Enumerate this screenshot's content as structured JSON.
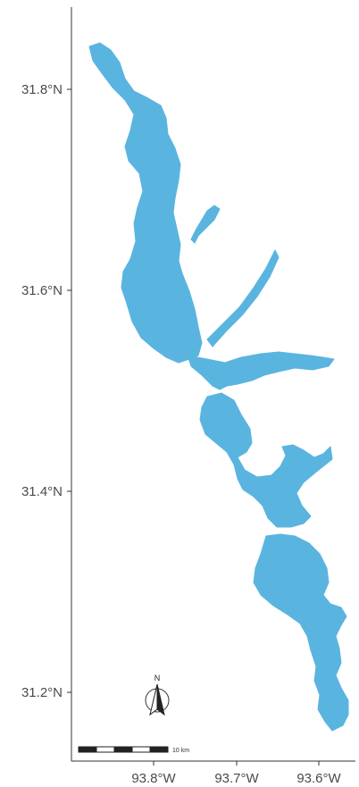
{
  "map": {
    "y_ticks": [
      "31.8°N",
      "31.6°N",
      "31.4°N",
      "31.2°N"
    ],
    "x_ticks": [
      "93.8°W",
      "93.7°W",
      "93.6°W"
    ],
    "north_arrow_label": "N",
    "scale_bar_label": "10 km",
    "water_color": "#5ab4e0",
    "axis_color": "#333333",
    "background_color": "#ffffff"
  }
}
